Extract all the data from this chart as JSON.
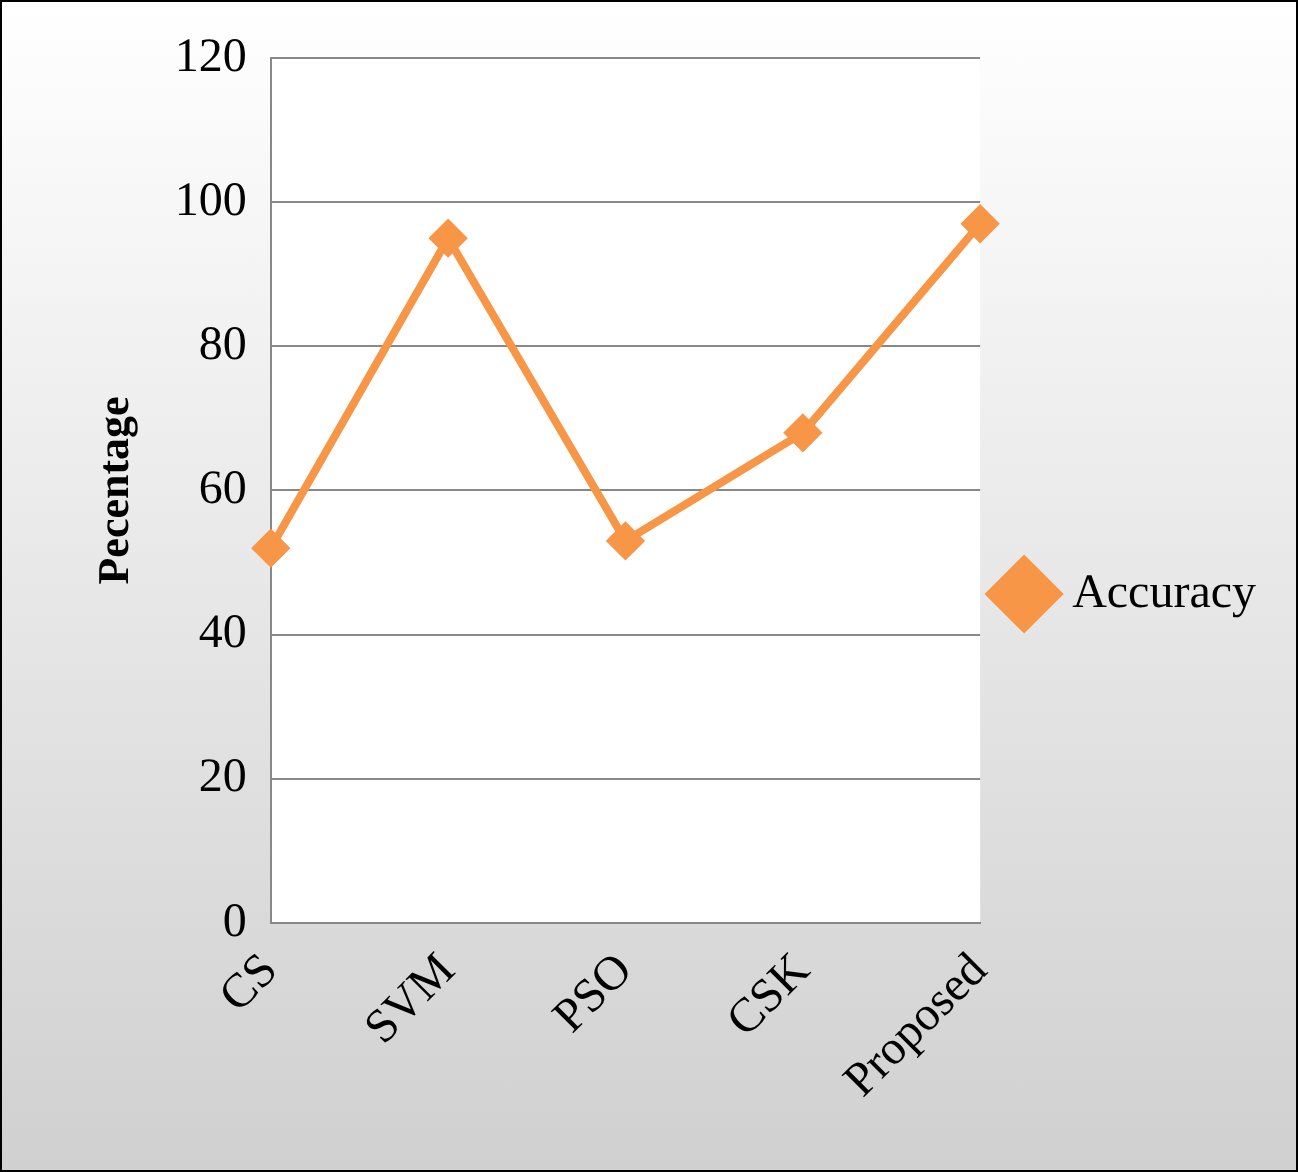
{
  "chart_data": {
    "type": "line",
    "ylabel": "Pecentage",
    "categories": [
      "CS",
      "SVM",
      "PSO",
      "CSK",
      "Proposed"
    ],
    "series": [
      {
        "name": "Accuracy",
        "color": "#f79646",
        "values": [
          52,
          95,
          53,
          68,
          97
        ]
      }
    ],
    "ylim": [
      0,
      120
    ],
    "yticks": [
      0,
      20,
      40,
      60,
      80,
      100,
      120
    ],
    "grid": "y",
    "legend": "right",
    "marker": "diamond",
    "line_style": "solid"
  }
}
